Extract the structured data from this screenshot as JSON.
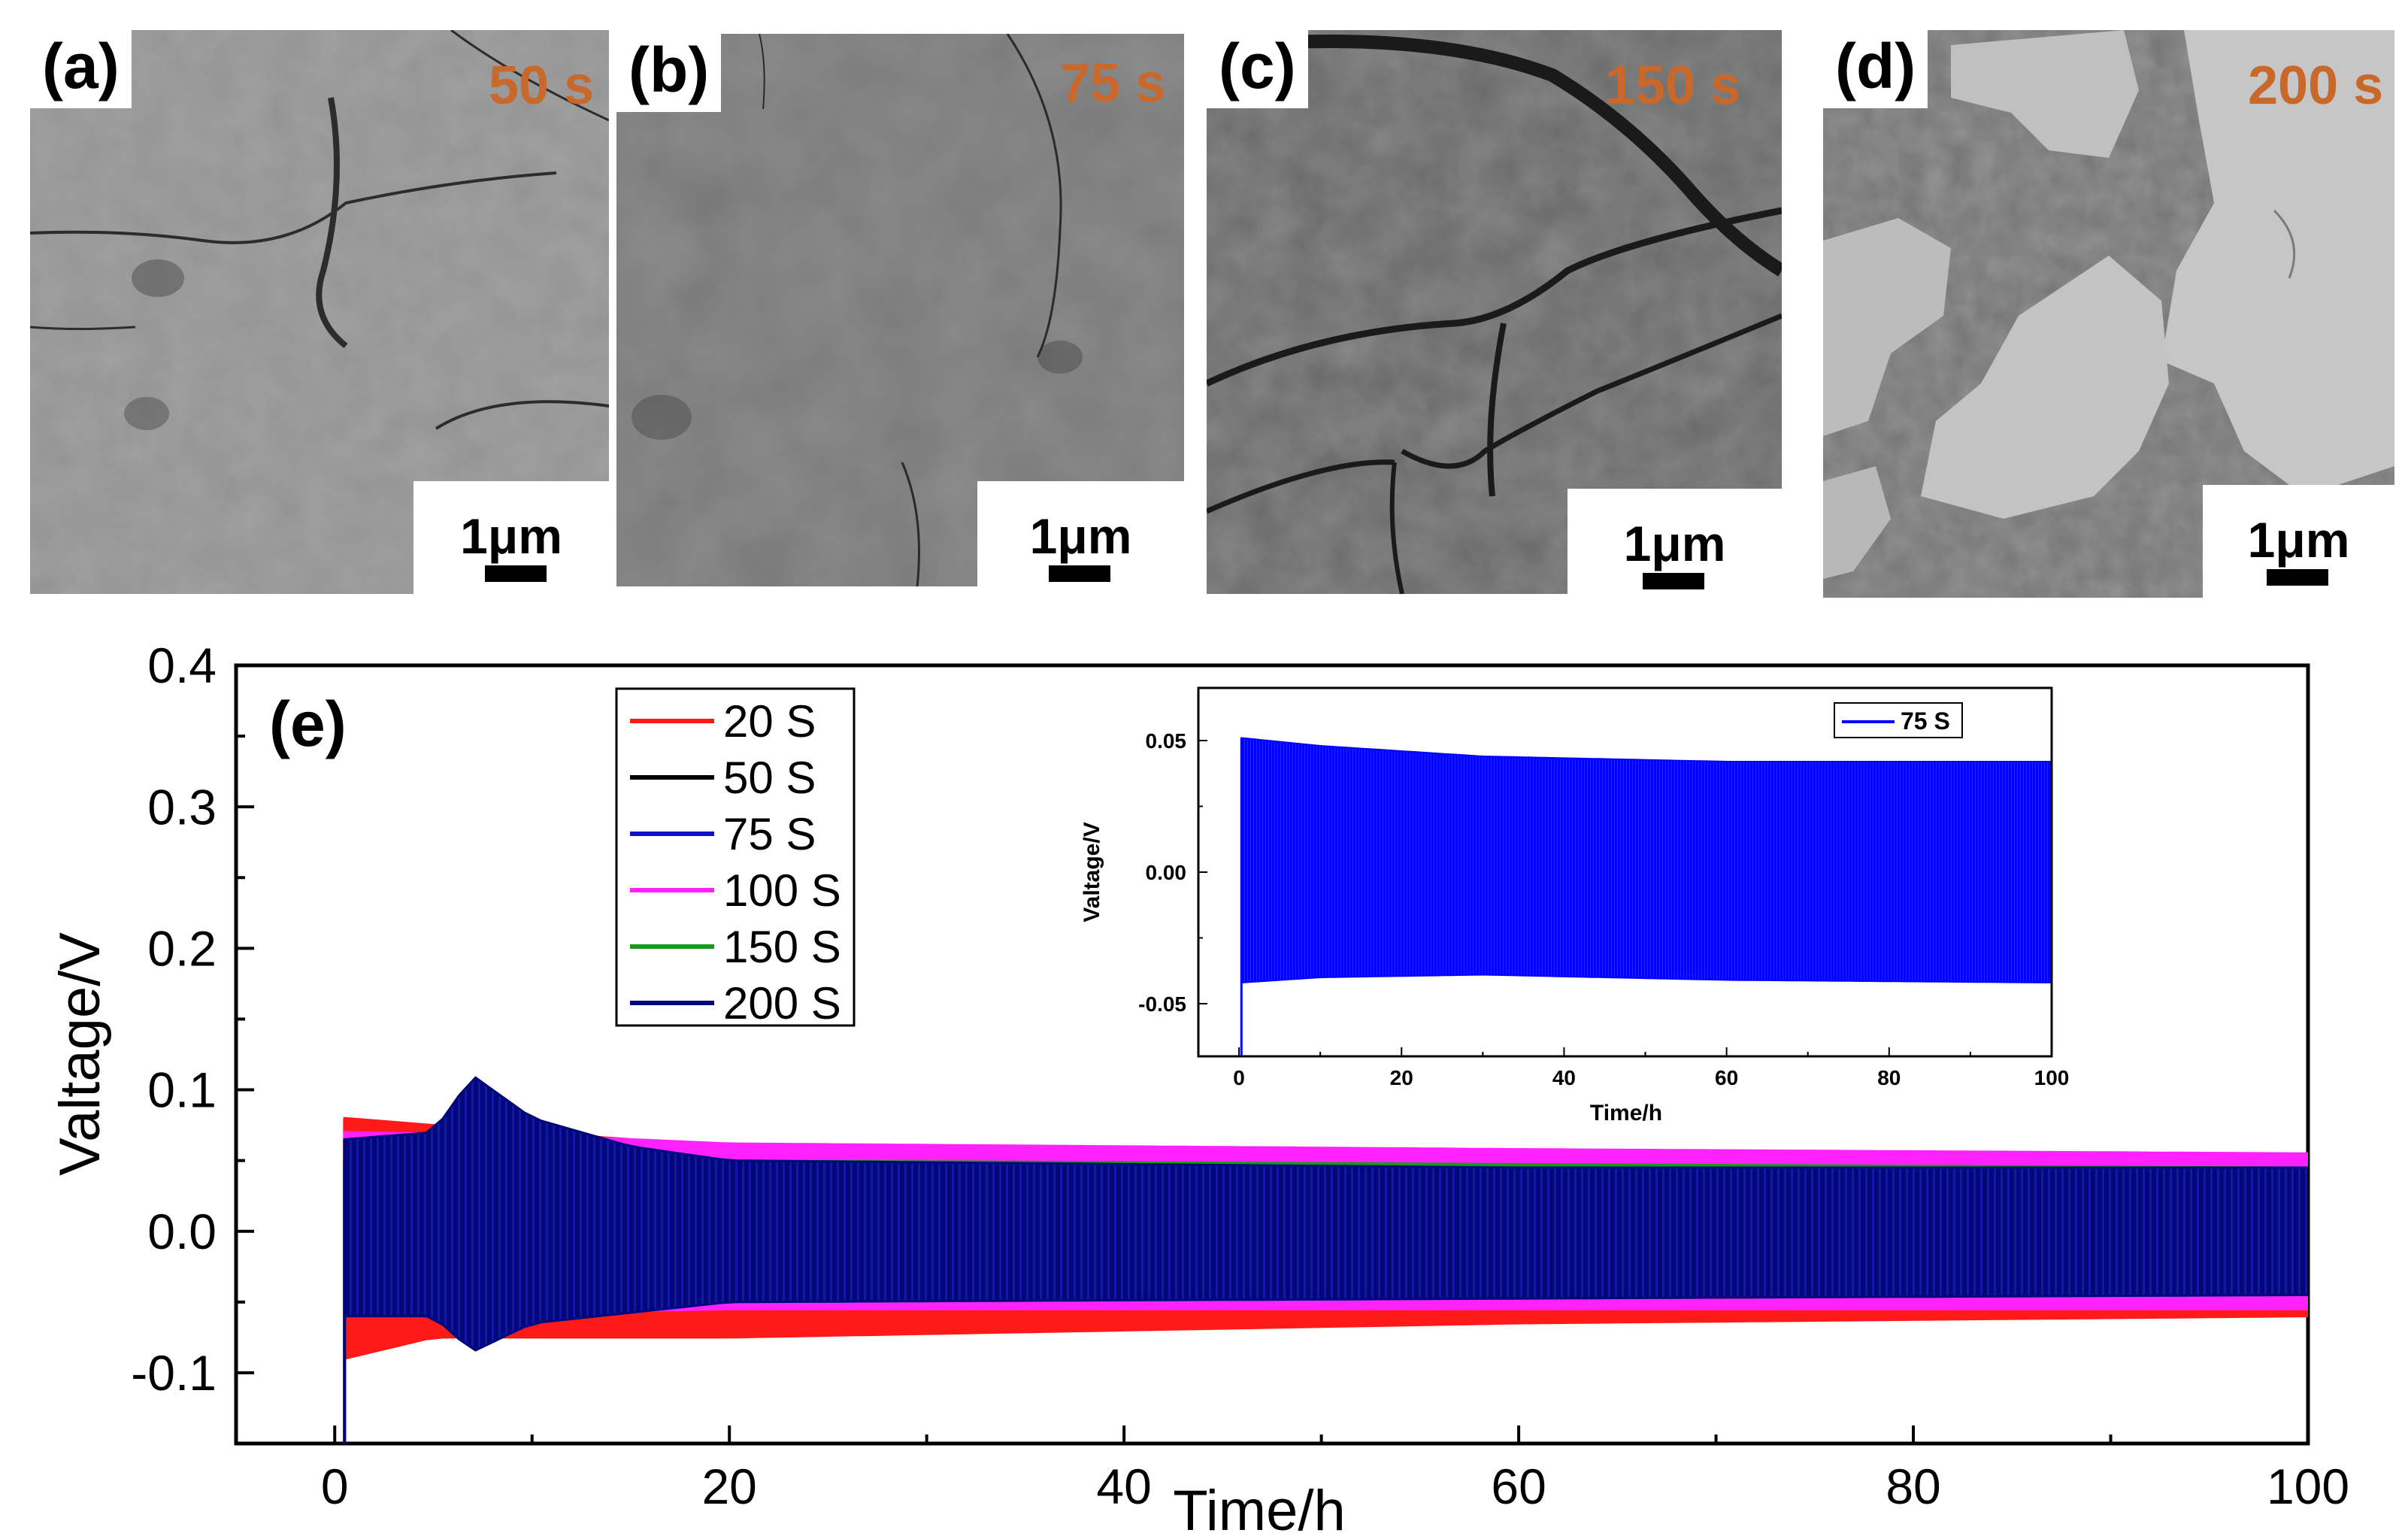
{
  "panels": [
    {
      "label": "(a)",
      "time": "50 s",
      "scale_bar": "1μm"
    },
    {
      "label": "(b)",
      "time": "75 s",
      "scale_bar": "1μm"
    },
    {
      "label": "(c)",
      "time": "150 s",
      "scale_bar": "1μm"
    },
    {
      "label": "(d)",
      "time": "200 s",
      "scale_bar": "1μm"
    }
  ],
  "colors": {
    "time_label": "#c8682a",
    "s20": "#ff1a1a",
    "s50": "#000000",
    "s75": "#1010c8",
    "s100": "#ff22ff",
    "s150": "#189a18",
    "s200": "#00087a",
    "inset": "#0000ff"
  },
  "chart_data": [
    {
      "type": "line",
      "panel_label": "(e)",
      "xlabel": "Time/h",
      "ylabel": "Valtage/V",
      "xlim": [
        -5,
        100
      ],
      "ylim": [
        -0.15,
        0.4
      ],
      "xticks": [
        0,
        20,
        40,
        60,
        80,
        100
      ],
      "xtick_labels": [
        "0",
        "20",
        "40",
        "60",
        "80",
        "100"
      ],
      "yticks": [
        -0.1,
        0.0,
        0.1,
        0.2,
        0.3,
        0.4
      ],
      "ytick_labels": [
        "-0.1",
        "0.0",
        "0.1",
        "0.2",
        "0.3",
        "0.4"
      ],
      "legend_position": "top-left",
      "series": [
        {
          "name": "20 S",
          "upper": [
            [
              0.5,
              0.08
            ],
            [
              5,
              0.075
            ],
            [
              20,
              0.06
            ],
            [
              60,
              0.055
            ],
            [
              100,
              0.05
            ]
          ],
          "lower": [
            [
              0.5,
              -0.09
            ],
            [
              5,
              -0.075
            ],
            [
              20,
              -0.075
            ],
            [
              60,
              -0.065
            ],
            [
              100,
              -0.06
            ]
          ]
        },
        {
          "name": "50 S",
          "upper": [
            [
              0.5,
              0.05
            ],
            [
              20,
              0.05
            ],
            [
              100,
              0.05
            ]
          ],
          "lower": [
            [
              0.5,
              -0.05
            ],
            [
              20,
              -0.05
            ],
            [
              100,
              -0.05
            ]
          ]
        },
        {
          "name": "75 S",
          "upper": [
            [
              0.5,
              0.05
            ],
            [
              100,
              0.043
            ]
          ],
          "lower": [
            [
              0.5,
              -0.04
            ],
            [
              100,
              -0.042
            ]
          ]
        },
        {
          "name": "100 S",
          "upper": [
            [
              0.5,
              0.07
            ],
            [
              10,
              0.068
            ],
            [
              20,
              0.062
            ],
            [
              60,
              0.058
            ],
            [
              100,
              0.055
            ]
          ],
          "lower": [
            [
              0.5,
              -0.06
            ],
            [
              20,
              -0.055
            ],
            [
              100,
              -0.055
            ]
          ]
        },
        {
          "name": "150 S",
          "upper": [
            [
              0.5,
              0.065
            ],
            [
              20,
              0.05
            ],
            [
              100,
              0.045
            ]
          ],
          "lower": [
            [
              0.5,
              -0.06
            ],
            [
              20,
              -0.05
            ],
            [
              100,
              -0.045
            ]
          ]
        },
        {
          "name": "200 S",
          "upper": [
            [
              0.5,
              0.065
            ],
            [
              5,
              0.07
            ],
            [
              7,
              0.11
            ],
            [
              10,
              0.08
            ],
            [
              15,
              0.06
            ],
            [
              20,
              0.05
            ],
            [
              60,
              0.045
            ],
            [
              100,
              0.045
            ]
          ],
          "lower": [
            [
              0.5,
              -0.06
            ],
            [
              5,
              -0.06
            ],
            [
              7,
              -0.085
            ],
            [
              10,
              -0.065
            ],
            [
              20,
              -0.05
            ],
            [
              100,
              -0.045
            ]
          ]
        }
      ]
    },
    {
      "type": "line",
      "title": "inset",
      "xlabel": "Time/h",
      "ylabel": "Valtage/V",
      "xlim": [
        -5,
        100
      ],
      "ylim": [
        -0.07,
        0.07
      ],
      "xticks": [
        0,
        20,
        40,
        60,
        80,
        100
      ],
      "xtick_labels": [
        "0",
        "20",
        "40",
        "60",
        "80",
        "100"
      ],
      "yticks": [
        -0.05,
        0.0,
        0.05
      ],
      "ytick_labels": [
        "-0.05",
        "0.00",
        "0.05"
      ],
      "legend_position": "top-right",
      "series": [
        {
          "name": "75 S",
          "upper": [
            [
              0.3,
              0.051
            ],
            [
              10,
              0.048
            ],
            [
              30,
              0.044
            ],
            [
              60,
              0.042
            ],
            [
              100,
              0.042
            ]
          ],
          "lower": [
            [
              0.3,
              -0.042
            ],
            [
              10,
              -0.04
            ],
            [
              30,
              -0.039
            ],
            [
              60,
              -0.041
            ],
            [
              100,
              -0.042
            ]
          ]
        }
      ]
    }
  ]
}
